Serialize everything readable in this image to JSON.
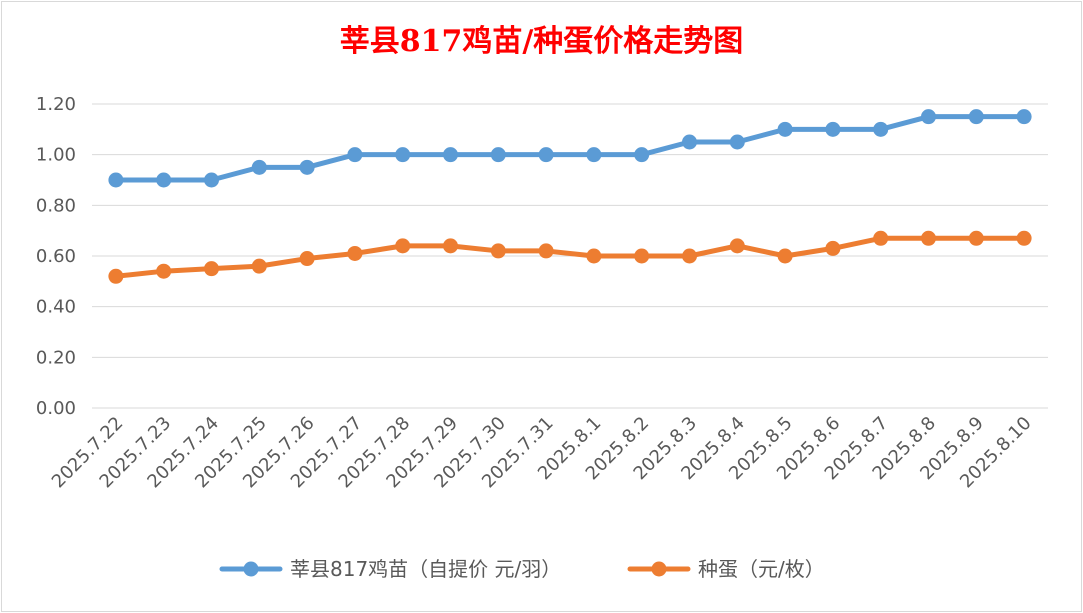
{
  "chart_data": {
    "type": "line",
    "title": "莘县817鸡苗/种蛋价格走势图",
    "categories": [
      "2025.7.22",
      "2025.7.23",
      "2025.7.24",
      "2025.7.25",
      "2025.7.26",
      "2025.7.27",
      "2025.7.28",
      "2025.7.29",
      "2025.7.30",
      "2025.7.31",
      "2025.8.1",
      "2025.8.2",
      "2025.8.3",
      "2025.8.4",
      "2025.8.5",
      "2025.8.6",
      "2025.8.7",
      "2025.8.8",
      "2025.8.9",
      "2025.8.10"
    ],
    "series": [
      {
        "name": "莘县817鸡苗（自提价 元/羽）",
        "color": "#5b9bd5",
        "values": [
          0.9,
          0.9,
          0.9,
          0.95,
          0.95,
          1.0,
          1.0,
          1.0,
          1.0,
          1.0,
          1.0,
          1.0,
          1.05,
          1.05,
          1.1,
          1.1,
          1.1,
          1.15,
          1.15,
          1.15
        ]
      },
      {
        "name": "种蛋（元/枚）",
        "color": "#ed7d31",
        "values": [
          0.52,
          0.54,
          0.55,
          0.56,
          0.59,
          0.61,
          0.64,
          0.64,
          0.62,
          0.62,
          0.6,
          0.6,
          0.6,
          0.64,
          0.6,
          0.63,
          0.67,
          0.67,
          0.67,
          0.67
        ]
      }
    ],
    "yticks": [
      "0.00",
      "0.20",
      "0.40",
      "0.60",
      "0.80",
      "1.00",
      "1.20"
    ],
    "ylim": [
      0,
      1.2
    ],
    "grid": true,
    "legend_position": "bottom"
  }
}
